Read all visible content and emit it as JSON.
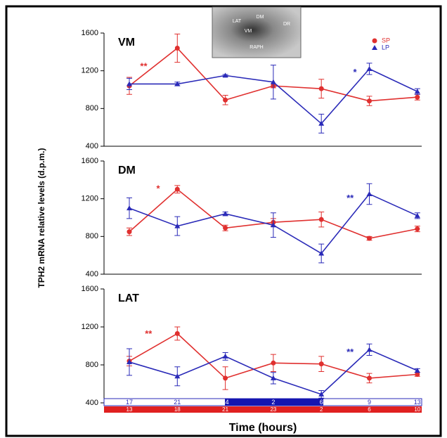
{
  "figure": {
    "ylabel": "TPH2 mRNA relative levels (d.p.m.)",
    "xlabel": "Time (hours)",
    "lp_clock": [
      "17",
      "21",
      "24",
      "2",
      "6",
      "9",
      "13"
    ],
    "sp_clock": [
      "13",
      "18",
      "21",
      "23",
      "2",
      "6",
      "10"
    ],
    "inset_labels": [
      "LAT",
      "DM",
      "VM",
      "DR",
      "RAPH"
    ]
  },
  "chart_data": [
    {
      "type": "line",
      "title": "VM",
      "ylim": [
        400,
        1600
      ],
      "yticks": [
        400,
        800,
        1200,
        1600
      ],
      "series": [
        {
          "name": "SP",
          "color": "#e0302f",
          "marker": "circle",
          "values": [
            1040,
            1440,
            890,
            1040,
            1010,
            880,
            920
          ],
          "errors": [
            90,
            150,
            50,
            20,
            100,
            50,
            30
          ],
          "annotation": "**"
        },
        {
          "name": "LP",
          "color": "#2a2ab8",
          "marker": "triangle",
          "values": [
            1060,
            1060,
            1150,
            1080,
            640,
            1220,
            980
          ],
          "errors": [
            60,
            20,
            10,
            180,
            100,
            60,
            30
          ],
          "annotation": "*"
        }
      ]
    },
    {
      "type": "line",
      "title": "DM",
      "ylim": [
        400,
        1600
      ],
      "yticks": [
        400,
        800,
        1200,
        1600
      ],
      "series": [
        {
          "name": "SP",
          "color": "#e0302f",
          "marker": "circle",
          "values": [
            850,
            1300,
            890,
            950,
            980,
            780,
            880
          ],
          "errors": [
            40,
            40,
            30,
            40,
            80,
            20,
            30
          ],
          "annotation": "*"
        },
        {
          "name": "LP",
          "color": "#2a2ab8",
          "marker": "triangle",
          "values": [
            1100,
            910,
            1040,
            920,
            620,
            1250,
            1020
          ],
          "errors": [
            110,
            100,
            20,
            130,
            100,
            110,
            30
          ],
          "annotation": "**"
        }
      ]
    },
    {
      "type": "line",
      "title": "LAT",
      "ylim": [
        400,
        1600
      ],
      "yticks": [
        400,
        800,
        1200,
        1600
      ],
      "series": [
        {
          "name": "SP",
          "color": "#e0302f",
          "marker": "circle",
          "values": [
            840,
            1130,
            660,
            820,
            810,
            660,
            700
          ],
          "errors": [
            50,
            70,
            120,
            90,
            80,
            50,
            20
          ],
          "annotation": "**"
        },
        {
          "name": "LP",
          "color": "#2a2ab8",
          "marker": "triangle",
          "values": [
            830,
            680,
            890,
            660,
            490,
            960,
            740
          ],
          "errors": [
            140,
            100,
            40,
            60,
            40,
            60,
            20
          ],
          "annotation": "**"
        }
      ]
    }
  ]
}
